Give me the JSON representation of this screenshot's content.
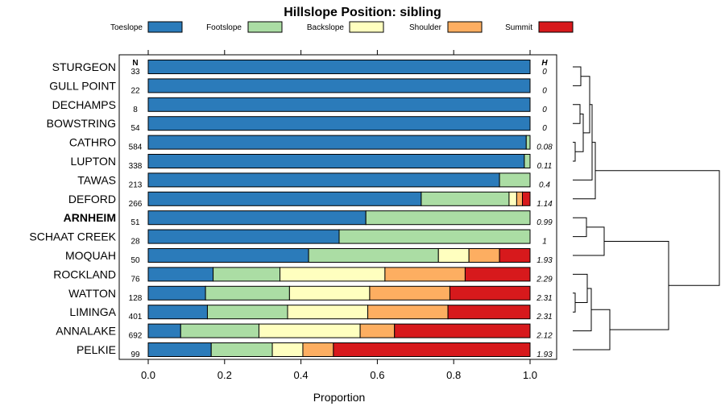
{
  "chart_data": {
    "type": "bar",
    "stacked": true,
    "orientation": "horizontal",
    "title": "Hillslope Position: sibling",
    "xlabel": "Proportion",
    "xlim": [
      0,
      1
    ],
    "x_ticks": [
      0.0,
      0.2,
      0.4,
      0.6,
      0.8,
      1.0
    ],
    "x_tick_labels": [
      "0.0",
      "0.2",
      "0.4",
      "0.6",
      "0.8",
      "1.0"
    ],
    "n_header": "N",
    "h_header": "H",
    "legend_position": "top",
    "grid": false,
    "categories": [
      "STURGEON",
      "GULL POINT",
      "DECHAMPS",
      "BOWSTRING",
      "CATHRO",
      "LUPTON",
      "TAWAS",
      "DEFORD",
      "ARNHEIM",
      "SCHAAT CREEK",
      "MOQUAH",
      "ROCKLAND",
      "WATTON",
      "LIMINGA",
      "ANNALAKE",
      "PELKIE"
    ],
    "highlighted_category": "ARNHEIM",
    "n_values": [
      "33",
      "22",
      "8",
      "54",
      "584",
      "338",
      "213",
      "266",
      "51",
      "28",
      "50",
      "76",
      "128",
      "401",
      "692",
      "99"
    ],
    "h_values": [
      "0",
      "0",
      "0",
      "0",
      "0.08",
      "0.11",
      "0.4",
      "1.14",
      "0.99",
      "1",
      "1.93",
      "2.29",
      "2.31",
      "2.31",
      "2.12",
      "1.93"
    ],
    "series": [
      {
        "name": "Toeslope",
        "color": "#2b7bba",
        "values": [
          1.0,
          1.0,
          1.0,
          1.0,
          0.99,
          0.985,
          0.92,
          0.715,
          0.57,
          0.5,
          0.42,
          0.17,
          0.15,
          0.155,
          0.085,
          0.165
        ]
      },
      {
        "name": "Footslope",
        "color": "#abdda4",
        "values": [
          0,
          0,
          0,
          0,
          0.01,
          0.015,
          0.08,
          0.23,
          0.43,
          0.5,
          0.34,
          0.175,
          0.22,
          0.21,
          0.205,
          0.16
        ]
      },
      {
        "name": "Backslope",
        "color": "#ffffbf",
        "values": [
          0,
          0,
          0,
          0,
          0,
          0,
          0,
          0.02,
          0,
          0,
          0.08,
          0.275,
          0.21,
          0.21,
          0.265,
          0.08
        ]
      },
      {
        "name": "Shoulder",
        "color": "#fdae61",
        "values": [
          0,
          0,
          0,
          0,
          0,
          0,
          0,
          0.015,
          0,
          0,
          0.08,
          0.21,
          0.21,
          0.21,
          0.09,
          0.08
        ]
      },
      {
        "name": "Summit",
        "color": "#d7191c",
        "values": [
          0,
          0,
          0,
          0,
          0,
          0,
          0,
          0.02,
          0,
          0,
          0.08,
          0.17,
          0.21,
          0.215,
          0.355,
          0.515
        ]
      }
    ]
  }
}
